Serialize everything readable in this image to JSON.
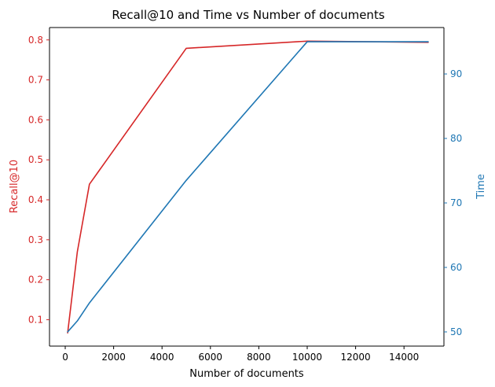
{
  "chart_data": {
    "type": "line",
    "title": "Recall@10 and Time vs Number of documents",
    "xlabel": "Number of documents",
    "xlim": [
      -650,
      15650
    ],
    "xticks": [
      0,
      2000,
      4000,
      6000,
      8000,
      10000,
      12000,
      14000
    ],
    "left_axis": {
      "label": "Recall@10",
      "color": "#d62728",
      "ylim": [
        0.034,
        0.831
      ],
      "ticks": [
        0.1,
        0.2,
        0.3,
        0.4,
        0.5,
        0.6,
        0.7,
        0.8
      ]
    },
    "right_axis": {
      "label": "Time",
      "color": "#1f77b4",
      "ylim": [
        47.8,
        97.2
      ],
      "ticks": [
        50,
        60,
        70,
        80,
        90
      ]
    },
    "series": [
      {
        "axis": "left",
        "color": "#d62728",
        "x": [
          100,
          500,
          1000,
          5000,
          10000,
          15000
        ],
        "values": [
          0.067,
          0.27,
          0.439,
          0.779,
          0.797,
          0.794
        ]
      },
      {
        "axis": "right",
        "color": "#1f77b4",
        "x": [
          100,
          500,
          1000,
          5000,
          10000,
          15000
        ],
        "values": [
          50.0,
          51.7,
          54.5,
          73.5,
          95.0,
          95.0
        ]
      }
    ],
    "grid": false,
    "legend": "none"
  }
}
